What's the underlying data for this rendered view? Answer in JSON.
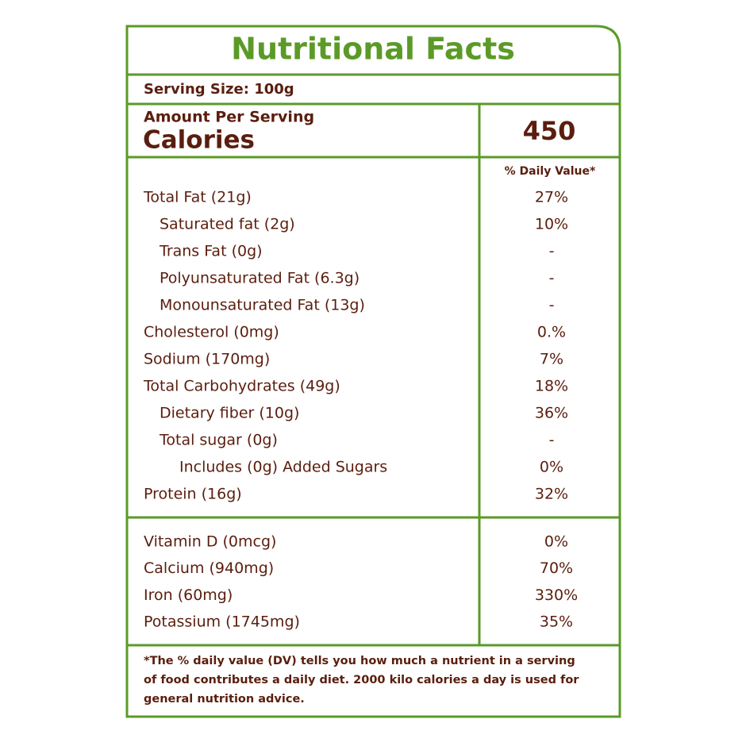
{
  "header": {
    "title": "Nutritional Facts",
    "serving_size": "Serving Size: 100g",
    "amount_per_serving": "Amount Per Serving",
    "calories_label": "Calories",
    "calories_value": 450,
    "daily_value_heading": "% Daily Value*"
  },
  "nutrients": [
    {
      "label": "Total Fat (21g)",
      "dv": "27%",
      "level": 0
    },
    {
      "label": "Saturated fat (2g)",
      "dv": "10%",
      "level": 1
    },
    {
      "label": "Trans Fat (0g)",
      "dv": "-",
      "level": 1
    },
    {
      "label": "Polyunsaturated Fat (6.3g)",
      "dv": "-",
      "level": 1
    },
    {
      "label": "Monounsaturated Fat (13g)",
      "dv": "-",
      "level": 1
    },
    {
      "label": "Cholesterol (0mg)",
      "dv": "0.%",
      "level": 0
    },
    {
      "label": "Sodium (170mg)",
      "dv": "7%",
      "level": 0
    },
    {
      "label": "Total Carbohydrates  (49g)",
      "dv": "18%",
      "level": 0
    },
    {
      "label": "Dietary fiber (10g)",
      "dv": "36%",
      "level": 1
    },
    {
      "label": "Total sugar (0g)",
      "dv": "-",
      "level": 1
    },
    {
      "label": "Includes (0g) Added Sugars",
      "dv": "0%",
      "level": 2
    },
    {
      "label": "Protein (16g)",
      "dv": "32%",
      "level": 0
    }
  ],
  "minerals": [
    {
      "label": "Vitamin D (0mcg)",
      "dv": "0%"
    },
    {
      "label": "Calcium (940mg)",
      "dv": "70%"
    },
    {
      "label": "Iron (60mg)",
      "dv": "330%"
    },
    {
      "label": "Potassium (1745mg)",
      "dv": "35%"
    }
  ],
  "footnote": [
    "*The % daily value (DV) tells you how much a nutrient in a serving",
    "of food contributes a daily diet. 2000 kilo calories a day is used for",
    "general nutrition advice."
  ]
}
